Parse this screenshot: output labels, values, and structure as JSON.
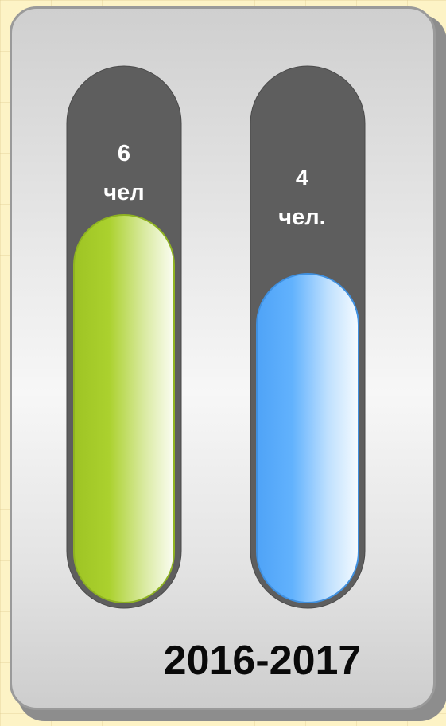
{
  "chart_data": {
    "type": "bar",
    "categories": [
      "",
      ""
    ],
    "values": [
      6,
      4
    ],
    "ylim": [
      0,
      10
    ],
    "data_labels": [
      [
        "6",
        "чел"
      ],
      [
        "4",
        "чел."
      ]
    ],
    "colors": [
      "#a8cf2b",
      "#5eaffc"
    ],
    "track_color": "#5e5e5e",
    "xlabel": "2016-2017",
    "grid": false
  }
}
